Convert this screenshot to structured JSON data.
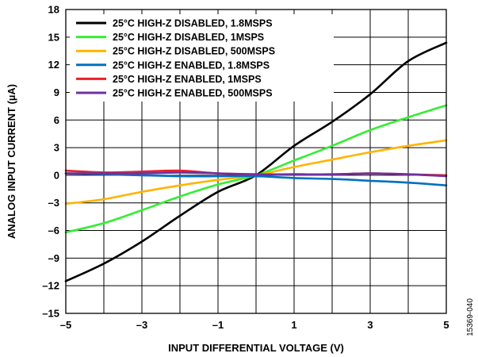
{
  "chart_data": {
    "type": "line",
    "xlabel": "INPUT DIFFERENTIAL VOLTAGE (V)",
    "ylabel": "ANALOG INPUT CURRENT (µA)",
    "xlim": [
      -5,
      5
    ],
    "ylim": [
      -15,
      18
    ],
    "xticks": [
      -5,
      -3,
      -1,
      1,
      3,
      5
    ],
    "xtick_labels": [
      "–5",
      "–3",
      "–1",
      "1",
      "3",
      "5"
    ],
    "xgrid": [
      -5,
      -4,
      -3,
      -2,
      -1,
      0,
      1,
      2,
      3,
      4,
      5
    ],
    "yticks": [
      -15,
      -12,
      -9,
      -6,
      -3,
      0,
      3,
      6,
      9,
      12,
      15,
      18
    ],
    "ytick_labels": [
      "–15",
      "–12",
      "–9",
      "–6",
      "–3",
      "0",
      "3",
      "6",
      "9",
      "12",
      "15",
      "18"
    ],
    "grid": true,
    "legend_position": "top-left",
    "figure_id": "15369-040",
    "series": [
      {
        "name": "25°C HIGH-Z DISABLED, 1.8MSPS",
        "color": "#000000",
        "x": [
          -5,
          -4,
          -3,
          -2,
          -1,
          0,
          1,
          2,
          3,
          4,
          5
        ],
        "y": [
          -11.5,
          -9.6,
          -7.2,
          -4.4,
          -1.8,
          0,
          3.2,
          5.8,
          8.8,
          12.4,
          14.4
        ]
      },
      {
        "name": "25°C HIGH-Z DISABLED, 1MSPS",
        "color": "#33ee33",
        "x": [
          -5,
          -4,
          -3,
          -2,
          -1,
          0,
          1,
          2,
          3,
          4,
          5
        ],
        "y": [
          -6.2,
          -5.2,
          -3.8,
          -2.3,
          -1.0,
          0,
          1.6,
          3.2,
          4.9,
          6.3,
          7.6
        ]
      },
      {
        "name": "25°C HIGH-Z DISABLED, 500MSPS",
        "color": "#ffb400",
        "x": [
          -5,
          -4,
          -3,
          -2,
          -1,
          0,
          1,
          2,
          3,
          4,
          5
        ],
        "y": [
          -3.1,
          -2.6,
          -1.8,
          -1.1,
          -0.5,
          0,
          0.9,
          1.7,
          2.5,
          3.2,
          3.8
        ]
      },
      {
        "name": "25°C HIGH-Z ENABLED, 1.8MSPS",
        "color": "#0070c0",
        "x": [
          -5,
          -4,
          -3,
          -2,
          -1,
          0,
          1,
          2,
          3,
          4,
          5
        ],
        "y": [
          0.2,
          0.1,
          0.0,
          -0.1,
          -0.1,
          -0.1,
          -0.3,
          -0.4,
          -0.6,
          -0.8,
          -1.1
        ]
      },
      {
        "name": "25°C HIGH-Z ENABLED, 1MSPS",
        "color": "#e8202a",
        "x": [
          -5,
          -4,
          -3,
          -2,
          -1,
          0,
          1,
          2,
          3,
          4,
          5
        ],
        "y": [
          0.5,
          0.3,
          0.4,
          0.5,
          0.2,
          0.1,
          0.1,
          0.1,
          0.2,
          0.1,
          0.0
        ]
      },
      {
        "name": "25°C HIGH-Z ENABLED, 500MSPS",
        "color": "#7030a0",
        "x": [
          -5,
          -4,
          -3,
          -2,
          -1,
          0,
          1,
          2,
          3,
          4,
          5
        ],
        "y": [
          0.2,
          0.2,
          0.2,
          0.3,
          0.2,
          0.1,
          0.1,
          0.1,
          0.2,
          0.1,
          -0.1
        ]
      }
    ]
  }
}
